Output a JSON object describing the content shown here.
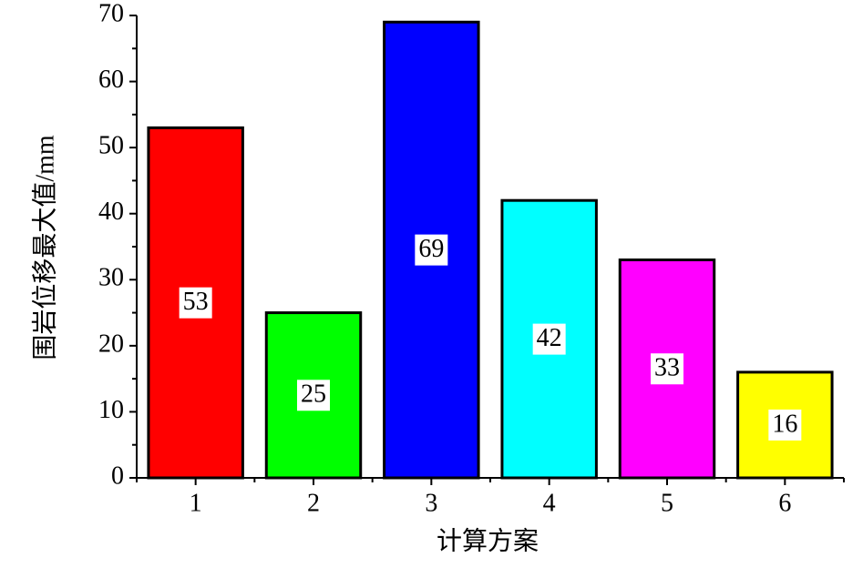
{
  "chart_data": {
    "type": "bar",
    "x_label": "计算方案",
    "y_label": "围岩位移最大值/mm",
    "categories": [
      "1",
      "2",
      "3",
      "4",
      "5",
      "6"
    ],
    "values": [
      53,
      25,
      69,
      42,
      33,
      16
    ],
    "colors": [
      "#ff0000",
      "#00ff00",
      "#0000ff",
      "#00ffff",
      "#ff00ff",
      "#ffff00"
    ],
    "ylim": [
      0,
      70
    ],
    "yticks": [
      0,
      10,
      20,
      30,
      40,
      50,
      60,
      70
    ],
    "data_labels": true
  }
}
